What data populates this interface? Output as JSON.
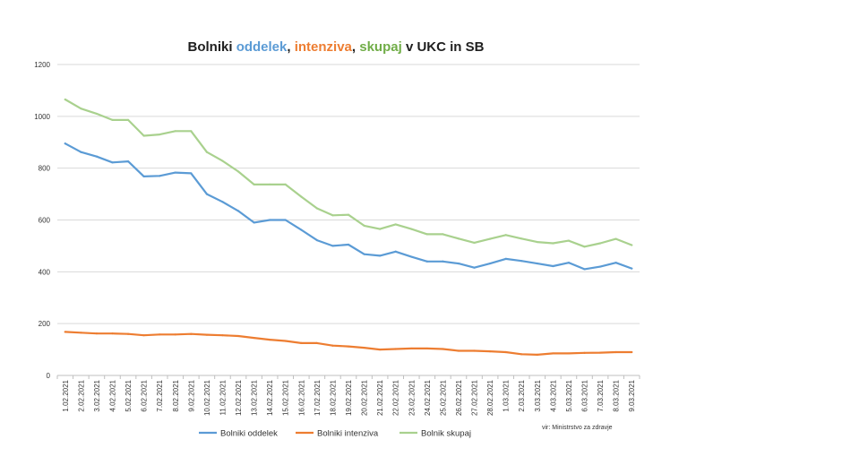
{
  "chart_data": {
    "type": "line",
    "title_parts": [
      {
        "text": "Bolniki ",
        "color": "#1f1f1f"
      },
      {
        "text": "oddelek",
        "color": "#5b9bd5"
      },
      {
        "text": ", ",
        "color": "#1f1f1f"
      },
      {
        "text": "intenziva",
        "color": "#ed7d31"
      },
      {
        "text": ", ",
        "color": "#1f1f1f"
      },
      {
        "text": "skupaj",
        "color": "#70ad47"
      },
      {
        "text": " v UKC in SB",
        "color": "#1f1f1f"
      }
    ],
    "xlabel": "",
    "ylabel": "",
    "ylim": [
      0,
      1200
    ],
    "yticks": [
      0,
      200,
      400,
      600,
      800,
      1000,
      1200
    ],
    "grid": true,
    "categories": [
      "1.02.2021",
      "2.02.2021",
      "3.02.2021",
      "4.02.2021",
      "5.02.2021",
      "6.02.2021",
      "7.02.2021",
      "8.02.2021",
      "9.02.2021",
      "10.02.2021",
      "11.02.2021",
      "12.02.2021",
      "13.02.2021",
      "14.02.2021",
      "15.02.2021",
      "16.02.2021",
      "17.02.2021",
      "18.02.2021",
      "19.02.2021",
      "20.02.2021",
      "21.02.2021",
      "22.02.2021",
      "23.02.2021",
      "24.02.2021",
      "25.02.2021",
      "26.02.2021",
      "27.02.2021",
      "28.02.2021",
      "1.03.2021",
      "2.03.2021",
      "3.03.2021",
      "4.03.2021",
      "5.03.2021",
      "6.03.2021",
      "7.03.2021",
      "8.03.2021",
      "9.03.2021"
    ],
    "series": [
      {
        "name": "Bolniki oddelek",
        "color": "#5b9bd5",
        "values": [
          895,
          862,
          845,
          822,
          826,
          768,
          770,
          783,
          780,
          700,
          670,
          635,
          590,
          600,
          600,
          562,
          522,
          500,
          505,
          468,
          462,
          478,
          458,
          440,
          440,
          432,
          416,
          432,
          450,
          442,
          432,
          422,
          435,
          410,
          420,
          435,
          413
        ]
      },
      {
        "name": "Bolniki intenziva",
        "color": "#ed7d31",
        "values": [
          168,
          165,
          162,
          162,
          160,
          155,
          158,
          158,
          160,
          157,
          155,
          152,
          145,
          138,
          133,
          125,
          125,
          115,
          112,
          107,
          100,
          102,
          104,
          104,
          102,
          95,
          95,
          93,
          90,
          82,
          80,
          85,
          85,
          87,
          88,
          90,
          90
        ]
      },
      {
        "name": "Bolnik skupaj",
        "color": "#a9d18e",
        "values": [
          1065,
          1030,
          1010,
          986,
          986,
          925,
          930,
          943,
          943,
          862,
          828,
          787,
          737,
          737,
          737,
          690,
          645,
          618,
          620,
          578,
          565,
          583,
          565,
          545,
          545,
          528,
          512,
          527,
          542,
          528,
          515,
          510,
          520,
          497,
          510,
          527,
          503
        ]
      }
    ],
    "source_note": "vir: Ministrstvo za zdravje"
  }
}
